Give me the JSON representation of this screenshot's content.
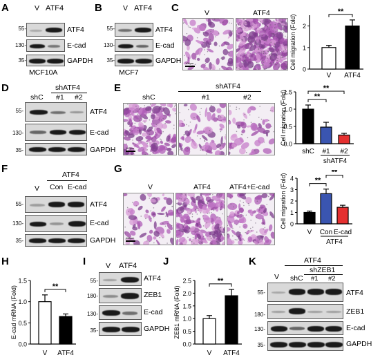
{
  "panel_letters": [
    "A",
    "B",
    "C",
    "D",
    "E",
    "F",
    "G",
    "H",
    "I",
    "J",
    "K"
  ],
  "A": {
    "lanes": [
      "V",
      "ATF4"
    ],
    "rows": [
      {
        "mw": "55-",
        "label": "ATF4"
      },
      {
        "mw": "130-",
        "label": "E-cad"
      },
      {
        "mw": "35-",
        "label": "GAPDH"
      }
    ],
    "cell_line": "MCF10A"
  },
  "B": {
    "lanes": [
      "V",
      "ATF4"
    ],
    "rows": [
      {
        "mw": "55-",
        "label": "ATF4"
      },
      {
        "mw": "130-",
        "label": "E-cad"
      },
      {
        "mw": "35-",
        "label": "GAPDH"
      }
    ],
    "cell_line": "MCF7"
  },
  "C": {
    "image_labels": [
      "V",
      "ATF4"
    ],
    "scale": "100μm"
  },
  "D": {
    "header": "shATF4",
    "lanes": [
      "shC",
      "#1",
      "#2"
    ],
    "rows": [
      {
        "mw": "55-",
        "label": "ATF4"
      },
      {
        "mw": "130-",
        "label": "E-cad"
      },
      {
        "mw": "35-",
        "label": "GAPDH"
      }
    ]
  },
  "E": {
    "header": "shATF4",
    "image_labels": [
      "shC",
      "#1",
      "#2"
    ],
    "scale": "100μm"
  },
  "F": {
    "header": "ATF4",
    "lanes": [
      "V",
      "Con",
      "E-cad"
    ],
    "rows": [
      {
        "mw": "55-",
        "label": "ATF4"
      },
      {
        "mw": "130-",
        "label": "E-cad"
      },
      {
        "mw": "35-",
        "label": "GAPDH"
      }
    ]
  },
  "G": {
    "image_labels": [
      "V",
      "ATF4",
      "ATF4+E-cad"
    ],
    "scale": "100μm"
  },
  "I": {
    "lanes": [
      "V",
      "ATF4"
    ],
    "rows": [
      {
        "mw": "55-",
        "label": "ATF4"
      },
      {
        "mw": "180-",
        "label": "ZEB1"
      },
      {
        "mw": "130-",
        "label": "E-cad"
      },
      {
        "mw": "35-",
        "label": "GAPDH"
      }
    ]
  },
  "K": {
    "header": "ATF4",
    "subheader": "shZEB1",
    "lanes": [
      "V",
      "shC",
      "#1",
      "#2"
    ],
    "rows": [
      {
        "mw": "55-",
        "label": "ATF4"
      },
      {
        "mw": "180-",
        "label": "ZEB1"
      },
      {
        "mw": "130-",
        "label": "E-cad"
      },
      {
        "mw": "35-",
        "label": "GAPDH"
      }
    ]
  },
  "chart_data": [
    {
      "panel": "C",
      "type": "bar",
      "categories": [
        "V",
        "ATF4"
      ],
      "values": [
        1.0,
        2.0
      ],
      "errors": [
        0.1,
        0.28
      ],
      "colors": [
        "#ffffff",
        "#000000"
      ],
      "ylabel": "Cell migration (Fold)",
      "ylim": [
        0,
        2.5
      ],
      "yticks": [
        "0",
        "1",
        "2"
      ],
      "yticks_at": [
        0,
        1,
        2
      ],
      "significance": [
        {
          "label": "**",
          "from": 0,
          "to": 1
        }
      ]
    },
    {
      "panel": "E",
      "type": "bar",
      "categories": [
        "shC",
        "#1",
        "#2"
      ],
      "group_label": "shATF4",
      "values": [
        1.0,
        0.48,
        0.25
      ],
      "errors": [
        0.12,
        0.14,
        0.05
      ],
      "colors": [
        "#000000",
        "#3a55b0",
        "#e53030"
      ],
      "ylabel": "Cell migration (Fold)",
      "ylim": [
        0,
        1.5
      ],
      "yticks": [
        "0.0",
        "0.5",
        "1.0",
        "1.5"
      ],
      "yticks_at": [
        0,
        0.5,
        1.0,
        1.5
      ],
      "significance": [
        {
          "label": "**",
          "from": 0,
          "to": 1
        },
        {
          "label": "**",
          "from": 0,
          "to": 2
        }
      ]
    },
    {
      "panel": "G",
      "type": "bar",
      "categories": [
        "V",
        "Con",
        "E-cad"
      ],
      "group_label": "ATF4",
      "values": [
        1.0,
        2.65,
        1.45
      ],
      "errors": [
        0.12,
        0.4,
        0.18
      ],
      "colors": [
        "#000000",
        "#3a55b0",
        "#e53030"
      ],
      "ylabel": "Cell migration (Fold)",
      "ylim": [
        0,
        4
      ],
      "yticks": [
        "0",
        "1",
        "2",
        "3",
        "4"
      ],
      "yticks_at": [
        0,
        1,
        2,
        3,
        4
      ],
      "significance": [
        {
          "label": "**",
          "from": 0,
          "to": 1
        },
        {
          "label": "**",
          "from": 1,
          "to": 2
        }
      ]
    },
    {
      "panel": "H",
      "type": "bar",
      "categories": [
        "V",
        "ATF4"
      ],
      "values": [
        1.0,
        0.65
      ],
      "errors": [
        0.16,
        0.06
      ],
      "colors": [
        "#ffffff",
        "#000000"
      ],
      "ylabel": "E-cad mRNA (Fold)",
      "ylim": [
        0,
        1.5
      ],
      "yticks": [
        "0.0",
        "0.5",
        "1.0",
        "1.5"
      ],
      "yticks_at": [
        0,
        0.5,
        1.0,
        1.5
      ],
      "significance": [
        {
          "label": "**",
          "from": 0,
          "to": 1
        }
      ]
    },
    {
      "panel": "J",
      "type": "bar",
      "categories": [
        "V",
        "ATF4"
      ],
      "values": [
        1.0,
        1.9
      ],
      "errors": [
        0.12,
        0.25
      ],
      "colors": [
        "#ffffff",
        "#000000"
      ],
      "ylabel": "ZEB1 mRNA (Fold)",
      "ylim": [
        0,
        2.5
      ],
      "yticks": [
        "0.0",
        "0.5",
        "1.0",
        "1.5",
        "2.0",
        "2.5"
      ],
      "yticks_at": [
        0,
        0.5,
        1.0,
        1.5,
        2.0,
        2.5
      ],
      "significance": [
        {
          "label": "**",
          "from": 0,
          "to": 1
        }
      ]
    }
  ]
}
